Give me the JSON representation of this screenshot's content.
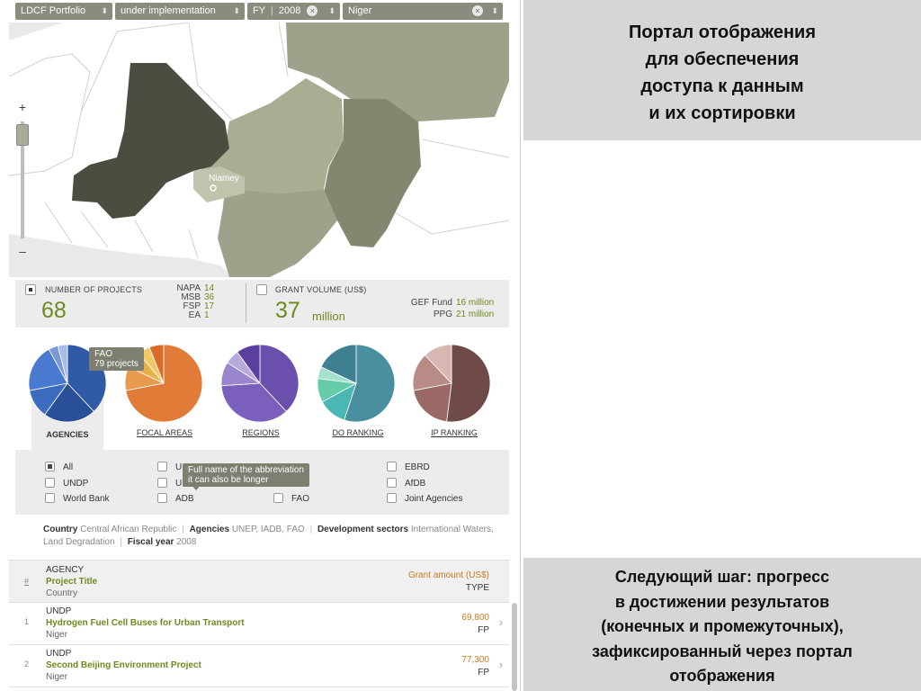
{
  "filters": {
    "portfolio": "LDCF Portfolio",
    "status": "under implementation",
    "fy_label": "FY",
    "fy_value": "2008",
    "country": "Niger",
    "clear_glyph": "×",
    "arrows_glyph": "⬍"
  },
  "map": {
    "city_label": "Niamey",
    "zoom_in": "+",
    "zoom_out": "–",
    "colors": {
      "sea": "#e9e9e9",
      "land": "#ffffff",
      "borders": "#d0d0d0",
      "mali": "#4a4d40",
      "niger": "#a9ae93",
      "algeria_libya": "#9da38a",
      "chad": "#83876f",
      "nigeria": "#9da38a",
      "burkina": "#bfc4ad"
    }
  },
  "stats": {
    "projects": {
      "title": "NUMBER OF PROJECTS",
      "value": "68",
      "breakdown": [
        {
          "label": "NAPA",
          "value": "14"
        },
        {
          "label": "MSB",
          "value": "36"
        },
        {
          "label": "FSP",
          "value": "17"
        },
        {
          "label": "EA",
          "value": "1"
        }
      ]
    },
    "grant": {
      "title": "GRANT VOLUME (US$)",
      "value": "37",
      "unit": "million",
      "breakdown": [
        {
          "label": "GEF Fund",
          "value": "16 million"
        },
        {
          "label": "PPG",
          "value": "21 million"
        }
      ]
    }
  },
  "pies": {
    "tooltip": {
      "line1": "FAO",
      "line2": "79 projects"
    },
    "tabs": [
      {
        "label": "AGENCIES",
        "active": true
      },
      {
        "label": "FOCAL AREAS",
        "active": false
      },
      {
        "label": "REGIONS",
        "active": false
      },
      {
        "label": "DO RANKING",
        "active": false
      },
      {
        "label": "IP RANKING",
        "active": false
      }
    ],
    "slices": [
      {
        "fractions": [
          0.38,
          0.22,
          0.12,
          0.2,
          0.04,
          0.04
        ],
        "colors": [
          "#2f5aa8",
          "#2a4f99",
          "#3b6cc0",
          "#4a7ad0",
          "#7898d8",
          "#a7bde8"
        ]
      },
      {
        "fractions": [
          0.72,
          0.1,
          0.07,
          0.05,
          0.06
        ],
        "colors": [
          "#e07c37",
          "#e89a4e",
          "#e6b04a",
          "#f1c866",
          "#d86a2a"
        ]
      },
      {
        "fractions": [
          0.38,
          0.36,
          0.1,
          0.06,
          0.1
        ],
        "colors": [
          "#6b4fad",
          "#7a5fbd",
          "#9a86cc",
          "#b8aadb",
          "#5b3f9c"
        ]
      },
      {
        "fractions": [
          0.55,
          0.12,
          0.1,
          0.05,
          0.18
        ],
        "colors": [
          "#4a8fa0",
          "#4ab7b4",
          "#66cba8",
          "#a6e0cf",
          "#3f7f92"
        ]
      },
      {
        "fractions": [
          0.52,
          0.2,
          0.16,
          0.12
        ],
        "colors": [
          "#6e4a48",
          "#9c6a66",
          "#b88b86",
          "#d8b7b2"
        ]
      }
    ]
  },
  "agencies": {
    "tooltip": {
      "line1": "Full name of the abbreviation",
      "line2": "it can also be longer"
    },
    "items": [
      {
        "label": "All",
        "checked": true
      },
      {
        "label": "UNDP",
        "checked": false
      },
      {
        "label": "World Bank",
        "checked": false
      },
      {
        "label": "U",
        "checked": false
      },
      {
        "label": "U",
        "checked": false
      },
      {
        "label": "ADB",
        "checked": false
      },
      {
        "label": "FAO",
        "checked": false
      },
      {
        "label": "EBRD",
        "checked": false
      },
      {
        "label": "AfDB",
        "checked": false
      },
      {
        "label": "Joint Agencies",
        "checked": false
      }
    ]
  },
  "summary": {
    "country_label": "Country",
    "country_value": "Central African Republic",
    "agencies_label": "Agencies",
    "agencies_value": "UNEP, IADB, FAO",
    "sectors_label": "Development sectors",
    "sectors_value": "International Waters, Land Degradation",
    "fy_label": "Fiscal year",
    "fy_value": "2008"
  },
  "table": {
    "header": {
      "num": "#",
      "agency": "AGENCY",
      "title": "Project Title",
      "country": "Country",
      "amount": "Grant amount (US$)",
      "type": "TYPE"
    },
    "rows": [
      {
        "num": "1",
        "agency": "UNDP",
        "title": "Hydrogen Fuel Cell Buses for Urban Transport",
        "country": "Niger",
        "amount": "69,800",
        "type": "FP"
      },
      {
        "num": "2",
        "agency": "UNDP",
        "title": "Second Beijing Environment Project",
        "country": "Niger",
        "amount": "77,300",
        "type": "FP"
      }
    ],
    "chevron": "›"
  },
  "panels": {
    "top": [
      "Портал отображения",
      "для обеспечения",
      "доступа к данным",
      "и их сортировки"
    ],
    "bottom": [
      "Следующий шаг: прогресс",
      "в достижении результатов",
      "(конечных и промежуточных),",
      "зафиксированный через портал",
      "отображения"
    ]
  }
}
